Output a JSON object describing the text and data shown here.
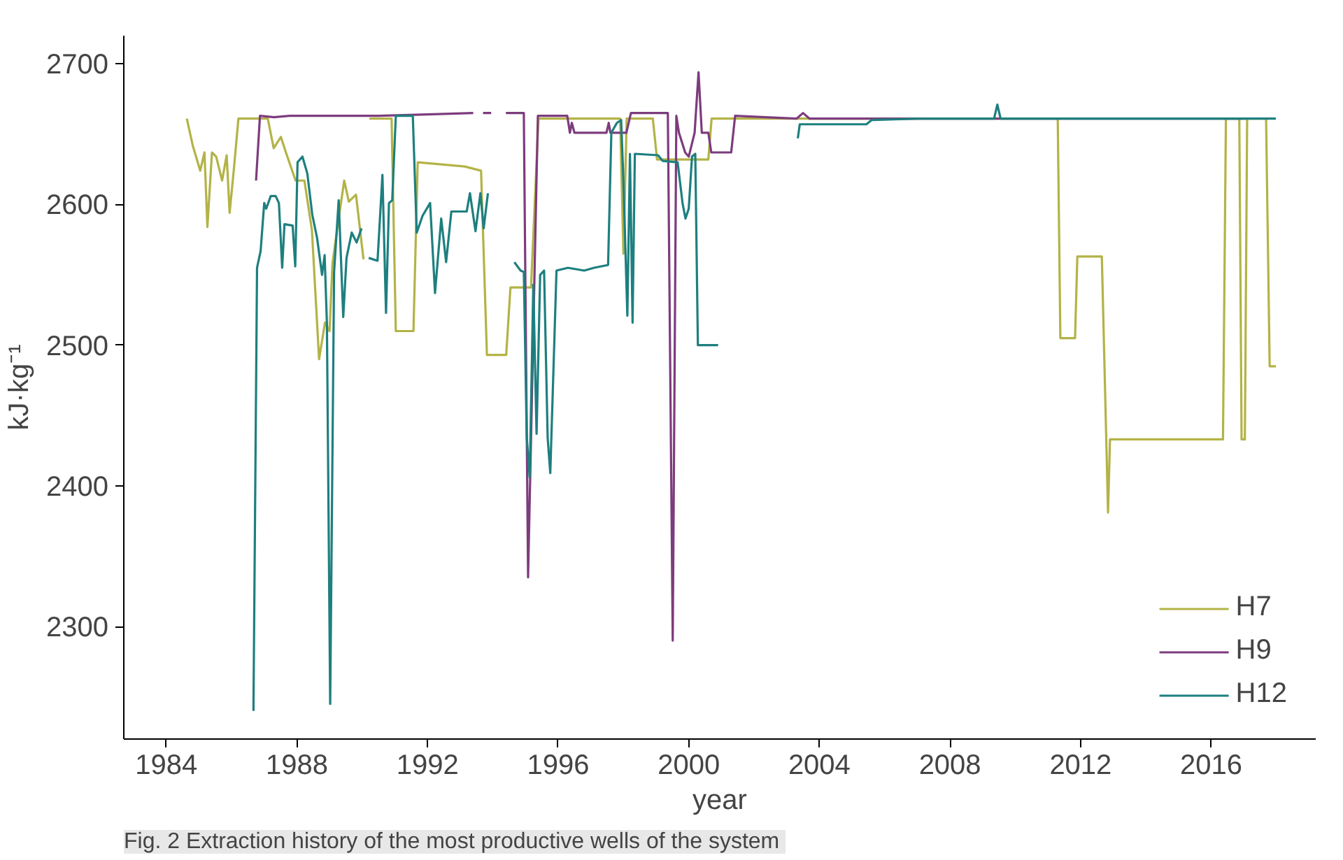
{
  "chart_data": {
    "type": "line",
    "xlabel": "year",
    "ylabel": "kJ·kg⁻¹",
    "xlim": [
      1982.7,
      2019.2
    ],
    "ylim": [
      2220,
      2720
    ],
    "xticks": [
      1984,
      1988,
      1992,
      1996,
      2000,
      2004,
      2008,
      2012,
      2016
    ],
    "yticks": [
      2300,
      2400,
      2500,
      2600,
      2700
    ],
    "grid": false,
    "legend": "bottom right",
    "line_style": "solid",
    "marker": "none",
    "annotations": [
      "Fig. 2  Extraction history of the most productive wells of the system"
    ],
    "series": [
      {
        "name": "H7",
        "color": "#b3b347",
        "x": [
          1984.63,
          1984.81,
          1985.04,
          1985.17,
          1985.26,
          1985.4,
          1985.53,
          1985.71,
          1985.85,
          1985.94,
          1986.07,
          1986.21,
          1987.11,
          1987.29,
          1987.51,
          1987.65,
          1987.96,
          1988.23,
          1988.46,
          1988.68,
          1988.86,
          1989.0,
          1989.09,
          1989.23,
          1989.45,
          1989.59,
          1989.81,
          1990.04,
          1990.12,
          1990.22,
          1990.9,
          1991.03,
          1991.57,
          1991.7,
          1993.14,
          1993.64,
          1993.82,
          1994.41,
          1994.54,
          1995.17,
          1995.4,
          1997.9,
          1998.0,
          1998.1,
          1998.9,
          1999.03,
          2000.6,
          2000.7,
          2011.3,
          2011.38,
          2011.83,
          2011.9,
          2012.65,
          2012.84,
          2012.9,
          2016.36,
          2016.45,
          2016.86,
          2016.93,
          2017.03,
          2017.1,
          2017.68,
          2017.79,
          2017.98
        ],
        "values": [
          2661,
          2642,
          2624,
          2637,
          2584,
          2637,
          2634,
          2617,
          2635,
          2594,
          2625,
          2661,
          2661,
          2640,
          2648,
          2638,
          2617,
          2617,
          2582,
          2490,
          2516,
          2510,
          2558,
          2582,
          2617,
          2602,
          2607,
          2561,
          null,
          2661,
          2661,
          2510,
          2510,
          2630,
          2627,
          2624,
          2493,
          2493,
          2541,
          2541,
          2661,
          2661,
          2565,
          2661,
          2661,
          2632,
          2632,
          2661,
          2661,
          2505,
          2505,
          2563,
          2563,
          2381,
          2433,
          2433,
          2661,
          2661,
          2433,
          2433,
          2661,
          2661,
          2485,
          2485
        ]
      },
      {
        "name": "H9",
        "color": "#7d3c7d",
        "x": [
          1986.75,
          1986.87,
          1987.3,
          1987.78,
          1989.0,
          1990.5,
          1992.0,
          1993.4,
          1993.5,
          1993.7,
          1993.95,
          1994.05,
          1994.4,
          1994.95,
          1995.08,
          1995.38,
          1996.28,
          1996.36,
          1996.42,
          1996.5,
          1997.48,
          1997.55,
          1997.6,
          1998.09,
          1998.23,
          1999.36,
          1999.51,
          1999.62,
          1999.7,
          1999.89,
          2000.0,
          2000.18,
          2000.3,
          2000.4,
          2000.6,
          2000.69,
          2001.3,
          2001.42,
          2003.3,
          2003.5,
          2003.7,
          2008.0,
          2011.1,
          2017.06
        ],
        "values": [
          2617,
          2663,
          2662,
          2663,
          2663,
          2663,
          2664,
          2665,
          null,
          2665,
          2665,
          null,
          2665,
          2665,
          2335,
          2663,
          2663,
          2651,
          2658,
          2651,
          2651,
          2658,
          2651,
          2651,
          2665,
          2665,
          2290,
          2663,
          2651,
          2637,
          2634,
          2651,
          2694,
          2651,
          2651,
          2637,
          2637,
          2663,
          2661,
          2665,
          2661,
          2661,
          2661,
          2661
        ]
      },
      {
        "name": "H12",
        "color": "#1e7f7f",
        "x": [
          1986.67,
          1986.78,
          1986.89,
          1987.0,
          1987.06,
          1987.2,
          1987.35,
          1987.45,
          1987.55,
          1987.62,
          1987.87,
          1987.95,
          1988.02,
          1988.17,
          1988.32,
          1988.47,
          1988.62,
          1988.77,
          1988.85,
          1988.92,
          1989.02,
          1989.14,
          1989.28,
          1989.42,
          1989.52,
          1989.68,
          1989.83,
          1989.98,
          1990.1,
          1990.2,
          1990.47,
          1990.62,
          1990.73,
          1990.82,
          1990.92,
          1991.03,
          1991.55,
          1991.67,
          1991.85,
          1992.08,
          1992.23,
          1992.42,
          1992.57,
          1992.73,
          1993.2,
          1993.3,
          1993.47,
          1993.62,
          1993.72,
          1993.85,
          1994.2,
          1994.66,
          1994.85,
          1994.95,
          1995.04,
          1995.13,
          1995.24,
          1995.34,
          1995.45,
          1995.57,
          1995.68,
          1995.76,
          1995.95,
          1996.3,
          1996.8,
          1997.1,
          1997.53,
          1997.63,
          1997.8,
          1997.93,
          1998.0,
          1998.12,
          1998.2,
          1998.28,
          1998.35,
          1999.06,
          1999.2,
          1999.66,
          1999.81,
          1999.9,
          2000.0,
          2000.1,
          2000.2,
          2000.28,
          2000.9,
          2002.0,
          2003.34,
          2003.4,
          2005.44,
          2005.6,
          2007.02,
          2009.35,
          2009.45,
          2009.55,
          2017.98
        ],
        "values": [
          2240,
          2555,
          2567,
          2601,
          2597,
          2606,
          2606,
          2601,
          2555,
          2586,
          2585,
          2556,
          2630,
          2634,
          2622,
          2593,
          2576,
          2550,
          2564,
          2515,
          2245,
          2552,
          2603,
          2520,
          2562,
          2580,
          2573,
          2583,
          null,
          2562,
          2560,
          2621,
          2523,
          2601,
          2603,
          2663,
          2663,
          2580,
          2592,
          2601,
          2537,
          2590,
          2559,
          2595,
          2595,
          2608,
          2581,
          2608,
          2583,
          2608,
          null,
          2559,
          2553,
          2552,
          2434,
          2406,
          2543,
          2437,
          2550,
          2553,
          2434,
          2409,
          2553,
          2555,
          2553,
          2555,
          2557,
          2651,
          2658,
          2660,
          2617,
          2521,
          2636,
          2516,
          2636,
          2635,
          2631,
          2630,
          2601,
          2590,
          2597,
          2634,
          2636,
          2500,
          2500,
          null,
          2647,
          2657,
          2657,
          2660,
          2661,
          2661,
          2671,
          2661,
          2661
        ]
      }
    ]
  }
}
